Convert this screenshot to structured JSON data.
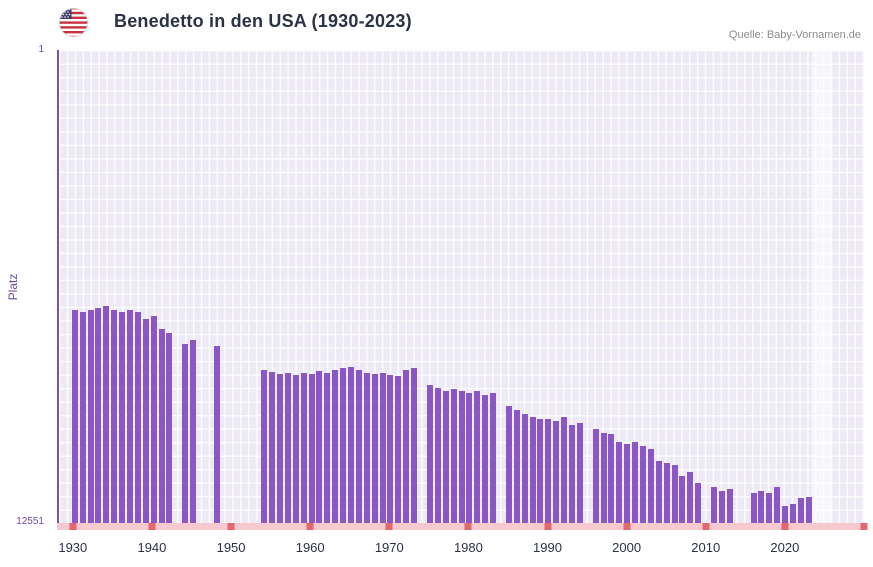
{
  "header": {
    "title": "Benedetto in den USA (1930-2023)",
    "source": "Quelle: Baby-Vornamen.de"
  },
  "chart_data": {
    "type": "bar",
    "title": "Benedetto in den USA (1930-2023)",
    "xlabel": "",
    "ylabel": "Platz",
    "legend": "none",
    "grid": true,
    "y_axis": {
      "top_label": "1",
      "bottom_label": "12551",
      "rank_min": 1,
      "rank_max": 12551,
      "inverted": true
    },
    "axis": {
      "year_min": 1928,
      "year_max": 2030
    },
    "x_ticks": [
      1930,
      1940,
      1950,
      1960,
      1970,
      1980,
      1990,
      2000,
      2010,
      2020
    ],
    "columns": [
      "year",
      "rank"
    ],
    "points": [
      [
        1930,
        6900
      ],
      [
        1931,
        6950
      ],
      [
        1932,
        6900
      ],
      [
        1933,
        6850
      ],
      [
        1934,
        6800
      ],
      [
        1935,
        6900
      ],
      [
        1936,
        6950
      ],
      [
        1937,
        6900
      ],
      [
        1938,
        6950
      ],
      [
        1939,
        7150
      ],
      [
        1940,
        7050
      ],
      [
        1941,
        7400
      ],
      [
        1942,
        7500
      ],
      [
        1944,
        7800
      ],
      [
        1945,
        7700
      ],
      [
        1948,
        7850
      ],
      [
        1954,
        8500
      ],
      [
        1955,
        8550
      ],
      [
        1956,
        8600
      ],
      [
        1957,
        8570
      ],
      [
        1958,
        8620
      ],
      [
        1959,
        8560
      ],
      [
        1960,
        8600
      ],
      [
        1961,
        8520
      ],
      [
        1962,
        8560
      ],
      [
        1963,
        8480
      ],
      [
        1964,
        8440
      ],
      [
        1965,
        8400
      ],
      [
        1966,
        8480
      ],
      [
        1967,
        8560
      ],
      [
        1968,
        8600
      ],
      [
        1969,
        8560
      ],
      [
        1970,
        8620
      ],
      [
        1971,
        8650
      ],
      [
        1972,
        8500
      ],
      [
        1973,
        8450
      ],
      [
        1975,
        8900
      ],
      [
        1976,
        8970
      ],
      [
        1977,
        9050
      ],
      [
        1978,
        9000
      ],
      [
        1979,
        9050
      ],
      [
        1980,
        9100
      ],
      [
        1981,
        9050
      ],
      [
        1982,
        9150
      ],
      [
        1983,
        9100
      ],
      [
        1985,
        9450
      ],
      [
        1986,
        9550
      ],
      [
        1987,
        9650
      ],
      [
        1988,
        9750
      ],
      [
        1989,
        9800
      ],
      [
        1990,
        9800
      ],
      [
        1991,
        9850
      ],
      [
        1992,
        9750
      ],
      [
        1993,
        9950
      ],
      [
        1994,
        9900
      ],
      [
        1996,
        10050
      ],
      [
        1997,
        10150
      ],
      [
        1998,
        10200
      ],
      [
        1999,
        10400
      ],
      [
        2000,
        10450
      ],
      [
        2001,
        10400
      ],
      [
        2002,
        10500
      ],
      [
        2003,
        10600
      ],
      [
        2004,
        10900
      ],
      [
        2005,
        10950
      ],
      [
        2006,
        11000
      ],
      [
        2007,
        11300
      ],
      [
        2008,
        11200
      ],
      [
        2009,
        11500
      ],
      [
        2011,
        11600
      ],
      [
        2012,
        11700
      ],
      [
        2013,
        11650
      ],
      [
        2016,
        11750
      ],
      [
        2017,
        11700
      ],
      [
        2018,
        11750
      ],
      [
        2019,
        11600
      ],
      [
        2020,
        12100
      ],
      [
        2021,
        12050
      ],
      [
        2022,
        11900
      ],
      [
        2023,
        11850
      ]
    ],
    "highlight_band": {
      "from": 2023.4,
      "to": 2025.9
    },
    "colors": {
      "bar": "#8a57c5",
      "plot_bg": "#edeaf5",
      "grid": "rgba(255,255,255,0.8)",
      "baseline": "#f6c9cf",
      "tick": "#e2676f",
      "axis_line": "#7a55b0",
      "band": "rgba(255,255,255,0.55)"
    }
  }
}
